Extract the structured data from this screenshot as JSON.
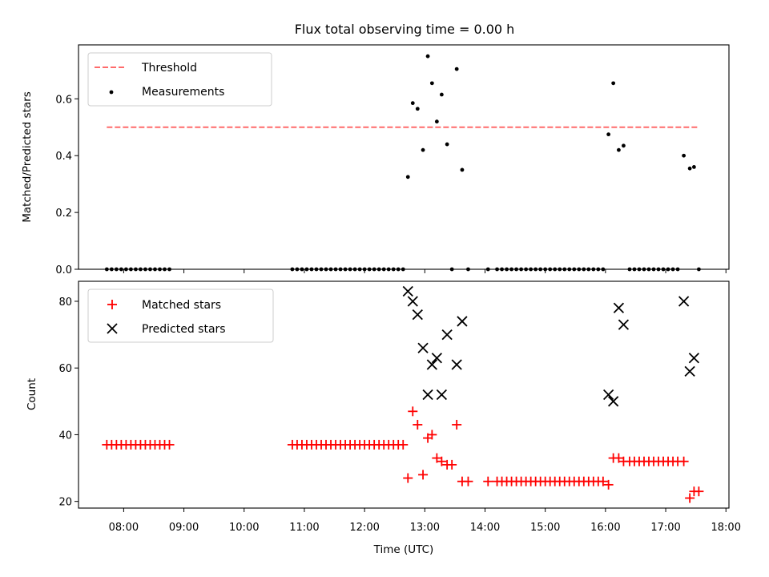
{
  "chart_data": [
    {
      "type": "scatter",
      "title": "Flux total observing time = 0.00 h",
      "ylabel": "Matched/Predicted stars",
      "xlabel": "",
      "ylim": [
        0,
        0.79
      ],
      "xlim": [
        7.25,
        18.05
      ],
      "yticks": [
        0.0,
        0.2,
        0.4,
        0.6
      ],
      "ytick_labels": [
        "0.0",
        "0.2",
        "0.4",
        "0.6"
      ],
      "threshold": {
        "name": "Threshold",
        "value": 0.5,
        "x": [
          7.72,
          17.55
        ],
        "color": "#ff6b6b"
      },
      "series": [
        {
          "name": "Measurements",
          "color": "#000000",
          "points": [
            [
              7.72,
              0
            ],
            [
              7.8,
              0
            ],
            [
              7.88,
              0
            ],
            [
              7.96,
              0
            ],
            [
              8.04,
              0
            ],
            [
              8.12,
              0
            ],
            [
              8.2,
              0
            ],
            [
              8.28,
              0
            ],
            [
              8.36,
              0
            ],
            [
              8.44,
              0
            ],
            [
              8.52,
              0
            ],
            [
              8.6,
              0
            ],
            [
              8.68,
              0
            ],
            [
              8.76,
              0
            ],
            [
              10.8,
              0
            ],
            [
              10.88,
              0
            ],
            [
              10.96,
              0
            ],
            [
              11.04,
              0
            ],
            [
              11.12,
              0
            ],
            [
              11.2,
              0
            ],
            [
              11.28,
              0
            ],
            [
              11.36,
              0
            ],
            [
              11.44,
              0
            ],
            [
              11.52,
              0
            ],
            [
              11.6,
              0
            ],
            [
              11.68,
              0
            ],
            [
              11.76,
              0
            ],
            [
              11.84,
              0
            ],
            [
              11.92,
              0
            ],
            [
              12.0,
              0
            ],
            [
              12.08,
              0
            ],
            [
              12.16,
              0
            ],
            [
              12.24,
              0
            ],
            [
              12.32,
              0
            ],
            [
              12.4,
              0
            ],
            [
              12.48,
              0
            ],
            [
              12.56,
              0
            ],
            [
              12.64,
              0
            ],
            [
              12.72,
              0.325
            ],
            [
              12.8,
              0.585
            ],
            [
              12.88,
              0.565
            ],
            [
              12.97,
              0.42
            ],
            [
              13.05,
              0.75
            ],
            [
              13.12,
              0.655
            ],
            [
              13.2,
              0.52
            ],
            [
              13.28,
              0.615
            ],
            [
              13.37,
              0.44
            ],
            [
              13.45,
              0
            ],
            [
              13.53,
              0.705
            ],
            [
              13.62,
              0.35
            ],
            [
              13.72,
              0
            ],
            [
              14.05,
              0
            ],
            [
              14.2,
              0
            ],
            [
              14.28,
              0
            ],
            [
              14.36,
              0
            ],
            [
              14.44,
              0
            ],
            [
              14.52,
              0
            ],
            [
              14.6,
              0
            ],
            [
              14.68,
              0
            ],
            [
              14.76,
              0
            ],
            [
              14.84,
              0
            ],
            [
              14.92,
              0
            ],
            [
              15.0,
              0
            ],
            [
              15.08,
              0
            ],
            [
              15.16,
              0
            ],
            [
              15.24,
              0
            ],
            [
              15.32,
              0
            ],
            [
              15.4,
              0
            ],
            [
              15.48,
              0
            ],
            [
              15.56,
              0
            ],
            [
              15.64,
              0
            ],
            [
              15.72,
              0
            ],
            [
              15.8,
              0
            ],
            [
              15.88,
              0
            ],
            [
              15.96,
              0
            ],
            [
              16.05,
              0.475
            ],
            [
              16.13,
              0.655
            ],
            [
              16.22,
              0.42
            ],
            [
              16.3,
              0.435
            ],
            [
              16.4,
              0
            ],
            [
              16.48,
              0
            ],
            [
              16.56,
              0
            ],
            [
              16.64,
              0
            ],
            [
              16.72,
              0
            ],
            [
              16.8,
              0
            ],
            [
              16.88,
              0
            ],
            [
              16.96,
              0
            ],
            [
              17.04,
              0
            ],
            [
              17.12,
              0
            ],
            [
              17.2,
              0
            ],
            [
              17.3,
              0.4
            ],
            [
              17.4,
              0.355
            ],
            [
              17.47,
              0.36
            ],
            [
              17.55,
              0
            ]
          ]
        }
      ],
      "legend": "upper-left",
      "grid": false
    },
    {
      "type": "scatter",
      "title": "",
      "xlabel": "Time (UTC)",
      "ylabel": "Count",
      "ylim": [
        18,
        86
      ],
      "xlim": [
        7.25,
        18.05
      ],
      "yticks": [
        20,
        40,
        60,
        80
      ],
      "ytick_labels": [
        "20",
        "40",
        "60",
        "80"
      ],
      "xticks": [
        8,
        9,
        10,
        11,
        12,
        13,
        14,
        15,
        16,
        17,
        18
      ],
      "xtick_labels": [
        "08:00",
        "09:00",
        "10:00",
        "11:00",
        "12:00",
        "13:00",
        "14:00",
        "15:00",
        "16:00",
        "17:00",
        "18:00"
      ],
      "series": [
        {
          "name": "Matched stars",
          "marker": "plus",
          "color": "#ff0000",
          "points": [
            [
              7.72,
              37
            ],
            [
              7.8,
              37
            ],
            [
              7.88,
              37
            ],
            [
              7.96,
              37
            ],
            [
              8.04,
              37
            ],
            [
              8.12,
              37
            ],
            [
              8.2,
              37
            ],
            [
              8.28,
              37
            ],
            [
              8.36,
              37
            ],
            [
              8.44,
              37
            ],
            [
              8.52,
              37
            ],
            [
              8.6,
              37
            ],
            [
              8.68,
              37
            ],
            [
              8.76,
              37
            ],
            [
              10.8,
              37
            ],
            [
              10.88,
              37
            ],
            [
              10.96,
              37
            ],
            [
              11.04,
              37
            ],
            [
              11.12,
              37
            ],
            [
              11.2,
              37
            ],
            [
              11.28,
              37
            ],
            [
              11.36,
              37
            ],
            [
              11.44,
              37
            ],
            [
              11.52,
              37
            ],
            [
              11.6,
              37
            ],
            [
              11.68,
              37
            ],
            [
              11.76,
              37
            ],
            [
              11.84,
              37
            ],
            [
              11.92,
              37
            ],
            [
              12.0,
              37
            ],
            [
              12.08,
              37
            ],
            [
              12.16,
              37
            ],
            [
              12.24,
              37
            ],
            [
              12.32,
              37
            ],
            [
              12.4,
              37
            ],
            [
              12.48,
              37
            ],
            [
              12.56,
              37
            ],
            [
              12.64,
              37
            ],
            [
              12.72,
              27
            ],
            [
              12.8,
              47
            ],
            [
              12.88,
              43
            ],
            [
              12.97,
              28
            ],
            [
              13.05,
              39
            ],
            [
              13.12,
              40
            ],
            [
              13.2,
              33
            ],
            [
              13.28,
              32
            ],
            [
              13.37,
              31
            ],
            [
              13.45,
              31
            ],
            [
              13.53,
              43
            ],
            [
              13.62,
              26
            ],
            [
              13.72,
              26
            ],
            [
              14.05,
              26
            ],
            [
              14.2,
              26
            ],
            [
              14.28,
              26
            ],
            [
              14.36,
              26
            ],
            [
              14.44,
              26
            ],
            [
              14.52,
              26
            ],
            [
              14.6,
              26
            ],
            [
              14.68,
              26
            ],
            [
              14.76,
              26
            ],
            [
              14.84,
              26
            ],
            [
              14.92,
              26
            ],
            [
              15.0,
              26
            ],
            [
              15.08,
              26
            ],
            [
              15.16,
              26
            ],
            [
              15.24,
              26
            ],
            [
              15.32,
              26
            ],
            [
              15.4,
              26
            ],
            [
              15.48,
              26
            ],
            [
              15.56,
              26
            ],
            [
              15.64,
              26
            ],
            [
              15.72,
              26
            ],
            [
              15.8,
              26
            ],
            [
              15.88,
              26
            ],
            [
              15.96,
              26
            ],
            [
              16.05,
              25
            ],
            [
              16.13,
              33
            ],
            [
              16.22,
              33
            ],
            [
              16.3,
              32
            ],
            [
              16.4,
              32
            ],
            [
              16.48,
              32
            ],
            [
              16.56,
              32
            ],
            [
              16.64,
              32
            ],
            [
              16.72,
              32
            ],
            [
              16.8,
              32
            ],
            [
              16.88,
              32
            ],
            [
              16.96,
              32
            ],
            [
              17.04,
              32
            ],
            [
              17.12,
              32
            ],
            [
              17.2,
              32
            ],
            [
              17.3,
              32
            ],
            [
              17.4,
              21
            ],
            [
              17.47,
              23
            ],
            [
              17.55,
              23
            ]
          ]
        },
        {
          "name": "Predicted stars",
          "marker": "x",
          "color": "#000000",
          "points": [
            [
              12.72,
              83
            ],
            [
              12.8,
              80
            ],
            [
              12.88,
              76
            ],
            [
              12.97,
              66
            ],
            [
              13.05,
              52
            ],
            [
              13.12,
              61
            ],
            [
              13.2,
              63
            ],
            [
              13.28,
              52
            ],
            [
              13.37,
              70
            ],
            [
              13.53,
              61
            ],
            [
              13.62,
              74
            ],
            [
              16.05,
              52
            ],
            [
              16.13,
              50
            ],
            [
              16.22,
              78
            ],
            [
              16.3,
              73
            ],
            [
              17.3,
              80
            ],
            [
              17.4,
              59
            ],
            [
              17.47,
              63
            ]
          ]
        }
      ],
      "legend": "upper-left",
      "grid": false
    }
  ]
}
